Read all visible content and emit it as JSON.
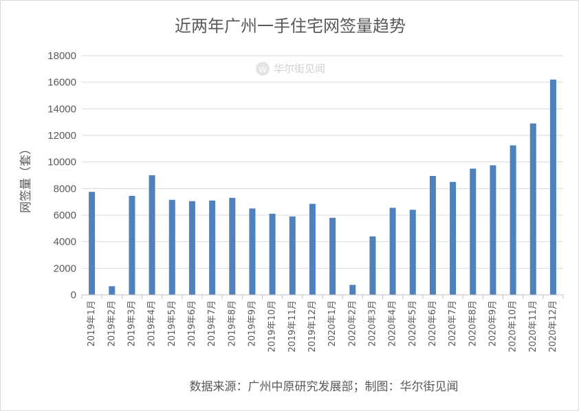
{
  "chart_data": {
    "type": "bar",
    "title": "近两年广州一手住宅网签量趋势",
    "ylabel": "网签量（套）",
    "xlabel": "",
    "ylim": [
      0,
      18000
    ],
    "yticks": [
      0,
      2000,
      4000,
      6000,
      8000,
      10000,
      12000,
      14000,
      16000,
      18000
    ],
    "grid": true,
    "bar_color": "#4f81bd",
    "categories": [
      "2019年1月",
      "2019年2月",
      "2019年3月",
      "2019年4月",
      "2019年5月",
      "2019年6月",
      "2019年7月",
      "2019年8月",
      "2019年9月",
      "2019年10月",
      "2019年11月",
      "2019年12月",
      "2020年1月",
      "2020年2月",
      "2020年3月",
      "2020年4月",
      "2020年5月",
      "2020年6月",
      "2020年7月",
      "2020年8月",
      "2020年9月",
      "2020年10月",
      "2020年11月",
      "2020年12月"
    ],
    "values": [
      7750,
      650,
      7450,
      9000,
      7150,
      7050,
      7100,
      7300,
      6500,
      6100,
      5900,
      6850,
      5800,
      750,
      4400,
      6550,
      6400,
      8950,
      8500,
      9500,
      9750,
      11250,
      12900,
      16200
    ],
    "source_note": "数据来源：广州中原研究发展部；制图：华尔街见闻",
    "watermark": "华尔街见闻"
  }
}
